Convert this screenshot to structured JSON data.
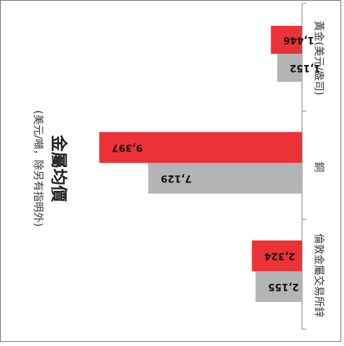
{
  "chart_data": {
    "type": "bar",
    "orientation": "horizontal",
    "title": "金屬均價",
    "subtitle": "(美元/噸，除另有指明外)",
    "categories": [
      "黃金(美元/盎司)",
      "銅",
      "倫敦金屬交易所鋅"
    ],
    "series": [
      {
        "values": [
          1152,
          7129,
          2155
        ]
      },
      {
        "values": [
          1446,
          9397,
          2324
        ]
      }
    ],
    "value_labels": [
      [
        "1,152",
        "7,129",
        "2,155"
      ],
      [
        "1,446",
        "9,397",
        "2,324"
      ]
    ],
    "grid": false,
    "colors": [
      "#b3b4b5",
      "#ed3237"
    ]
  }
}
